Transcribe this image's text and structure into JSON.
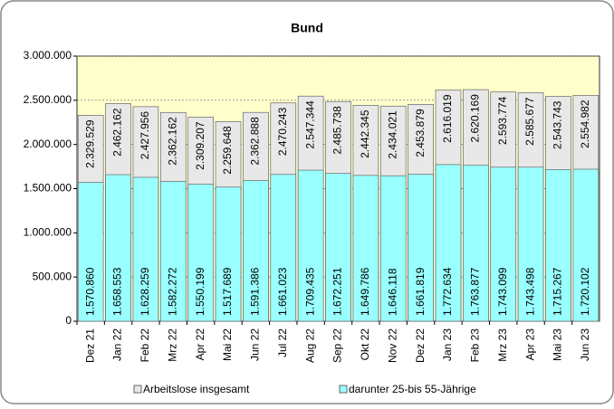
{
  "chart_data": {
    "type": "bar",
    "barmode": "overlay",
    "title": "Bund",
    "categories": [
      "Dez 21",
      "Jan 22",
      "Feb 22",
      "Mrz 22",
      "Apr 22",
      "Mai 22",
      "Jun 22",
      "Jul 22",
      "Aug 22",
      "Sep 22",
      "Okt 22",
      "Nov 22",
      "Dez 22",
      "Jan 23",
      "Feb 23",
      "Mrz 23",
      "Apr 23",
      "Mai 23",
      "Jun 23"
    ],
    "series": [
      {
        "name": "Arbeitslose insgesamt",
        "color": "#e8e8e8",
        "values": [
          2329529,
          2462162,
          2427956,
          2362162,
          2309207,
          2259648,
          2362888,
          2470243,
          2547344,
          2485738,
          2442345,
          2434021,
          2453879,
          2616019,
          2620169,
          2593774,
          2585677,
          2543743,
          2554982
        ],
        "value_labels": [
          "2.329.529",
          "2.462.162",
          "2.427.956",
          "2.362.162",
          "2.309.207",
          "2.259.648",
          "2.362.888",
          "2.470.243",
          "2.547.344",
          "2.485.738",
          "2.442.345",
          "2.434.021",
          "2.453.879",
          "2.616.019",
          "2.620.169",
          "2.593.774",
          "2.585.677",
          "2.543.743",
          "2.554.982"
        ]
      },
      {
        "name": "darunter 25-bis 55-Jährige",
        "color": "#99ffff",
        "values": [
          1570860,
          1658553,
          1628259,
          1582272,
          1550199,
          1517689,
          1591386,
          1661023,
          1709435,
          1672251,
          1649786,
          1646118,
          1661819,
          1772634,
          1763877,
          1743099,
          1743498,
          1715267,
          1720102
        ],
        "value_labels": [
          "1.570.860",
          "1.658.553",
          "1.628.259",
          "1.582.272",
          "1.550.199",
          "1.517.689",
          "1.591.386",
          "1.661.023",
          "1.709.435",
          "1.672.251",
          "1.649.786",
          "1.646.118",
          "1.661.819",
          "1.772.634",
          "1.763.877",
          "1.743.099",
          "1.743.498",
          "1.715.267",
          "1.720.102"
        ]
      }
    ],
    "ylim": [
      0,
      3000000
    ],
    "yticks": [
      0,
      {
        "value": 500000,
        "label": "500.000"
      },
      {
        "value": 1000000,
        "label": "1.000.000"
      },
      {
        "value": 1500000,
        "label": "1.500.000"
      },
      {
        "value": 2000000,
        "label": "2.000.000"
      },
      {
        "value": 2500000,
        "label": "2.500.000"
      },
      {
        "value": 3000000,
        "label": "3.000.000"
      }
    ],
    "grid": true,
    "plot_background": "#ffffcc",
    "legend": "bottom"
  }
}
